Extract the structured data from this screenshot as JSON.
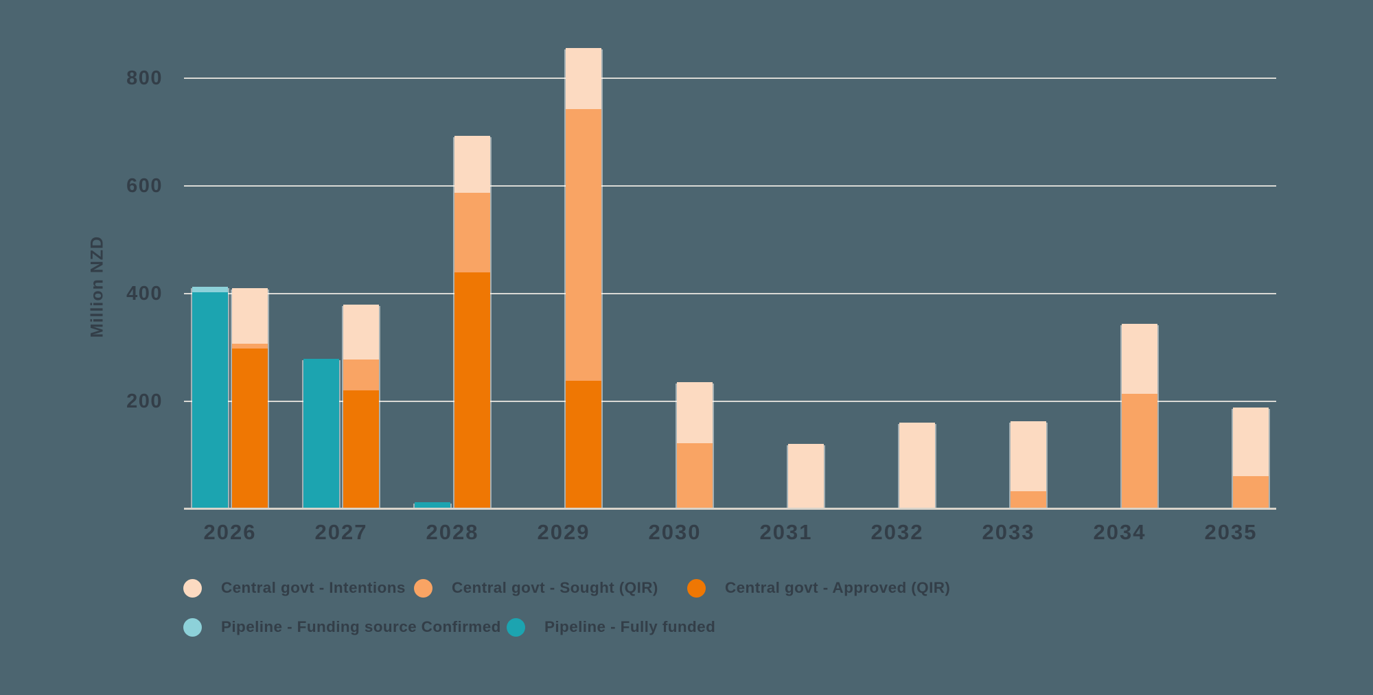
{
  "chart_data": {
    "type": "bar",
    "stacked": true,
    "grouped": true,
    "title": "",
    "ylabel": "Million NZD",
    "xlabel": "",
    "ylim": [
      0,
      860
    ],
    "yticks": [
      200,
      400,
      600,
      800
    ],
    "grid": "horizontal",
    "legend_position": "bottom",
    "categories": [
      "2026",
      "2027",
      "2028",
      "2029",
      "2030",
      "2031",
      "2032",
      "2033",
      "2034",
      "2035"
    ],
    "bar_slots_per_category": [
      "Pipeline",
      "Central govt"
    ],
    "series": [
      {
        "name": "Pipeline - Fully funded",
        "slot": "pipeline",
        "color": "#1CA4B0",
        "values": [
          400,
          277,
          10,
          0,
          0,
          0,
          0,
          0,
          0,
          0
        ]
      },
      {
        "name": "Pipeline - Funding source Confirmed",
        "slot": "pipeline",
        "color": "#8DD1D9",
        "values": [
          10,
          0,
          0,
          0,
          0,
          0,
          0,
          0,
          0,
          0
        ]
      },
      {
        "name": "Central govt - Approved (QIR)",
        "slot": "central",
        "color": "#EF7703",
        "values": [
          295,
          218,
          437,
          236,
          0,
          0,
          0,
          0,
          0,
          0
        ]
      },
      {
        "name": "Central govt - Sought (QIR)",
        "slot": "central",
        "color": "#F9A464",
        "values": [
          10,
          57,
          148,
          504,
          120,
          0,
          0,
          30,
          211,
          58
        ]
      },
      {
        "name": "Central govt - Intentions",
        "slot": "central",
        "color": "#FCDAC1",
        "values": [
          103,
          102,
          105,
          114,
          113,
          118,
          158,
          130,
          130,
          128
        ]
      }
    ],
    "legend_rows": [
      [
        "Central govt - Intentions",
        "Central govt - Sought (QIR)",
        "Central govt - Approved (QIR)"
      ],
      [
        "Pipeline - Funding source Confirmed",
        "Pipeline - Fully funded"
      ]
    ]
  },
  "colors": {
    "background": "#4C6570",
    "gridline": "#EDE9E2",
    "axis_baseline": "#D8D3CA",
    "text": "#333E48"
  }
}
